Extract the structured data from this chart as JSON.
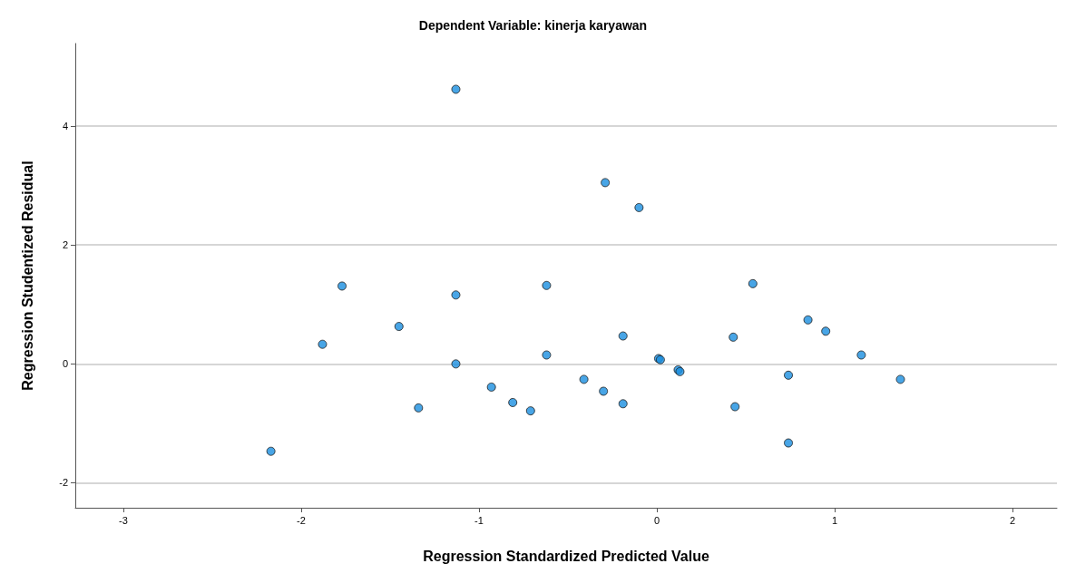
{
  "chart_data": {
    "type": "scatter",
    "title": "Dependent Variable: kinerja karyawan",
    "xlabel": "Regression Standardized Predicted Value",
    "ylabel": "Regression Studentized Residual",
    "x": [
      -1.13,
      -0.29,
      -0.1,
      -1.77,
      -1.13,
      -0.62,
      -1.45,
      -1.88,
      -0.62,
      -1.13,
      -0.41,
      -0.3,
      -0.19,
      -0.19,
      -0.93,
      -0.81,
      -0.71,
      -1.34,
      -2.17,
      0.54,
      0.85,
      0.95,
      0.43,
      1.15,
      0.01,
      0.02,
      0.12,
      0.13,
      0.74,
      1.37,
      0.44,
      0.74
    ],
    "values": [
      4.62,
      3.05,
      2.63,
      1.31,
      1.16,
      1.32,
      0.63,
      0.33,
      0.15,
      0.0,
      -0.26,
      -0.46,
      0.47,
      -0.67,
      -0.39,
      -0.65,
      -0.79,
      -0.74,
      -1.47,
      1.35,
      0.74,
      0.55,
      0.45,
      0.15,
      0.09,
      0.07,
      -0.1,
      -0.13,
      -0.19,
      -0.26,
      -0.72,
      -1.33
    ],
    "color": "#1a8ee0",
    "marker": "circle",
    "xlim": [
      -3.27,
      2.25
    ],
    "xticks": [
      -3,
      -2,
      -1,
      0,
      1,
      2
    ],
    "ylim": [
      -2.42,
      5.39
    ],
    "yticks": [
      -2,
      0,
      2,
      4
    ],
    "grid": "y"
  }
}
